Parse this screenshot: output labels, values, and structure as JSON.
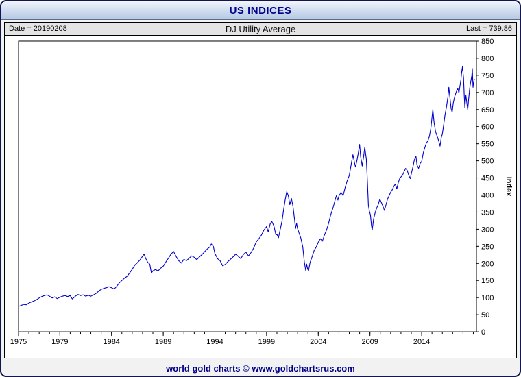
{
  "window": {
    "title": "US INDICES"
  },
  "chart_header": {
    "date": "Date = 20190208",
    "title": "DJ Utility Average",
    "last": "Last = 739.86"
  },
  "footer": {
    "text": "world gold charts © www.goldchartsrus.com"
  },
  "chart_data": {
    "type": "line",
    "title": "DJ Utility Average",
    "date": "20190208",
    "last": 739.86,
    "xlabel": "",
    "ylabel": "Index",
    "xlim": [
      1975,
      2019.3
    ],
    "ylim": [
      0,
      850
    ],
    "y_tick_step": 50,
    "x_ticks": [
      1975,
      1979,
      1984,
      1989,
      1994,
      1999,
      2004,
      2009,
      2014
    ],
    "grid": false,
    "legend": "none",
    "line_color": "#0000cc",
    "series": [
      {
        "name": "DJ Utility Average",
        "color": "#0000cc",
        "points": [
          [
            1975.0,
            74
          ],
          [
            1975.25,
            77
          ],
          [
            1975.5,
            80
          ],
          [
            1975.75,
            79
          ],
          [
            1976.0,
            84
          ],
          [
            1976.25,
            87
          ],
          [
            1976.5,
            90
          ],
          [
            1976.75,
            94
          ],
          [
            1977.0,
            99
          ],
          [
            1977.25,
            103
          ],
          [
            1977.5,
            106
          ],
          [
            1977.75,
            108
          ],
          [
            1978.0,
            104
          ],
          [
            1978.25,
            99
          ],
          [
            1978.5,
            102
          ],
          [
            1978.75,
            97
          ],
          [
            1979.0,
            101
          ],
          [
            1979.25,
            104
          ],
          [
            1979.5,
            106
          ],
          [
            1979.75,
            103
          ],
          [
            1980.0,
            106
          ],
          [
            1980.2,
            96
          ],
          [
            1980.5,
            104
          ],
          [
            1980.75,
            109
          ],
          [
            1981.0,
            106
          ],
          [
            1981.25,
            108
          ],
          [
            1981.5,
            104
          ],
          [
            1981.75,
            107
          ],
          [
            1982.0,
            104
          ],
          [
            1982.25,
            108
          ],
          [
            1982.5,
            112
          ],
          [
            1982.75,
            119
          ],
          [
            1983.0,
            124
          ],
          [
            1983.25,
            127
          ],
          [
            1983.5,
            129
          ],
          [
            1983.75,
            132
          ],
          [
            1984.0,
            129
          ],
          [
            1984.25,
            125
          ],
          [
            1984.5,
            133
          ],
          [
            1984.75,
            143
          ],
          [
            1985.0,
            150
          ],
          [
            1985.25,
            157
          ],
          [
            1985.5,
            162
          ],
          [
            1985.75,
            172
          ],
          [
            1986.0,
            183
          ],
          [
            1986.25,
            195
          ],
          [
            1986.5,
            202
          ],
          [
            1986.75,
            210
          ],
          [
            1987.0,
            221
          ],
          [
            1987.15,
            227
          ],
          [
            1987.3,
            215
          ],
          [
            1987.5,
            203
          ],
          [
            1987.7,
            198
          ],
          [
            1987.85,
            172
          ],
          [
            1988.0,
            178
          ],
          [
            1988.25,
            182
          ],
          [
            1988.5,
            178
          ],
          [
            1988.75,
            186
          ],
          [
            1989.0,
            192
          ],
          [
            1989.25,
            204
          ],
          [
            1989.5,
            215
          ],
          [
            1989.75,
            227
          ],
          [
            1990.0,
            235
          ],
          [
            1990.25,
            220
          ],
          [
            1990.5,
            208
          ],
          [
            1990.75,
            201
          ],
          [
            1991.0,
            212
          ],
          [
            1991.25,
            208
          ],
          [
            1991.5,
            215
          ],
          [
            1991.75,
            222
          ],
          [
            1992.0,
            218
          ],
          [
            1992.25,
            211
          ],
          [
            1992.5,
            219
          ],
          [
            1992.75,
            226
          ],
          [
            1993.0,
            234
          ],
          [
            1993.25,
            242
          ],
          [
            1993.5,
            248
          ],
          [
            1993.65,
            257
          ],
          [
            1993.85,
            250
          ],
          [
            1994.0,
            229
          ],
          [
            1994.25,
            214
          ],
          [
            1994.5,
            208
          ],
          [
            1994.75,
            193
          ],
          [
            1995.0,
            197
          ],
          [
            1995.25,
            205
          ],
          [
            1995.5,
            212
          ],
          [
            1995.75,
            219
          ],
          [
            1996.0,
            227
          ],
          [
            1996.25,
            221
          ],
          [
            1996.5,
            214
          ],
          [
            1996.75,
            226
          ],
          [
            1997.0,
            233
          ],
          [
            1997.25,
            222
          ],
          [
            1997.5,
            232
          ],
          [
            1997.75,
            245
          ],
          [
            1998.0,
            263
          ],
          [
            1998.25,
            272
          ],
          [
            1998.5,
            283
          ],
          [
            1998.75,
            298
          ],
          [
            1999.0,
            308
          ],
          [
            1999.15,
            292
          ],
          [
            1999.35,
            316
          ],
          [
            1999.5,
            323
          ],
          [
            1999.7,
            310
          ],
          [
            1999.9,
            283
          ],
          [
            2000.0,
            285
          ],
          [
            2000.15,
            275
          ],
          [
            2000.35,
            304
          ],
          [
            2000.5,
            325
          ],
          [
            2000.65,
            358
          ],
          [
            2000.8,
            386
          ],
          [
            2000.95,
            410
          ],
          [
            2001.1,
            398
          ],
          [
            2001.25,
            372
          ],
          [
            2001.4,
            390
          ],
          [
            2001.55,
            368
          ],
          [
            2001.7,
            330
          ],
          [
            2001.8,
            302
          ],
          [
            2001.9,
            318
          ],
          [
            2002.0,
            302
          ],
          [
            2002.15,
            288
          ],
          [
            2002.3,
            275
          ],
          [
            2002.5,
            248
          ],
          [
            2002.65,
            205
          ],
          [
            2002.78,
            180
          ],
          [
            2002.88,
            198
          ],
          [
            2002.95,
            185
          ],
          [
            2003.05,
            178
          ],
          [
            2003.2,
            202
          ],
          [
            2003.4,
            219
          ],
          [
            2003.6,
            238
          ],
          [
            2003.8,
            248
          ],
          [
            2004.0,
            262
          ],
          [
            2004.2,
            272
          ],
          [
            2004.4,
            265
          ],
          [
            2004.6,
            283
          ],
          [
            2004.8,
            298
          ],
          [
            2005.0,
            318
          ],
          [
            2005.2,
            342
          ],
          [
            2005.4,
            360
          ],
          [
            2005.6,
            382
          ],
          [
            2005.75,
            398
          ],
          [
            2005.9,
            385
          ],
          [
            2006.0,
            397
          ],
          [
            2006.2,
            408
          ],
          [
            2006.4,
            398
          ],
          [
            2006.6,
            422
          ],
          [
            2006.8,
            442
          ],
          [
            2007.0,
            457
          ],
          [
            2007.2,
            492
          ],
          [
            2007.35,
            518
          ],
          [
            2007.5,
            495
          ],
          [
            2007.6,
            482
          ],
          [
            2007.75,
            502
          ],
          [
            2007.9,
            528
          ],
          [
            2008.0,
            548
          ],
          [
            2008.1,
            512
          ],
          [
            2008.25,
            485
          ],
          [
            2008.4,
            515
          ],
          [
            2008.5,
            540
          ],
          [
            2008.65,
            505
          ],
          [
            2008.75,
            442
          ],
          [
            2008.85,
            370
          ],
          [
            2008.95,
            352
          ],
          [
            2009.05,
            342
          ],
          [
            2009.15,
            310
          ],
          [
            2009.22,
            298
          ],
          [
            2009.35,
            330
          ],
          [
            2009.5,
            348
          ],
          [
            2009.65,
            362
          ],
          [
            2009.8,
            372
          ],
          [
            2009.95,
            388
          ],
          [
            2010.1,
            378
          ],
          [
            2010.25,
            368
          ],
          [
            2010.4,
            355
          ],
          [
            2010.55,
            372
          ],
          [
            2010.7,
            388
          ],
          [
            2010.85,
            398
          ],
          [
            2011.0,
            408
          ],
          [
            2011.15,
            415
          ],
          [
            2011.3,
            425
          ],
          [
            2011.45,
            432
          ],
          [
            2011.6,
            418
          ],
          [
            2011.75,
            438
          ],
          [
            2011.9,
            450
          ],
          [
            2012.0,
            453
          ],
          [
            2012.15,
            458
          ],
          [
            2012.3,
            468
          ],
          [
            2012.45,
            478
          ],
          [
            2012.6,
            472
          ],
          [
            2012.75,
            458
          ],
          [
            2012.9,
            448
          ],
          [
            2013.0,
            462
          ],
          [
            2013.15,
            482
          ],
          [
            2013.3,
            503
          ],
          [
            2013.45,
            513
          ],
          [
            2013.55,
            488
          ],
          [
            2013.7,
            478
          ],
          [
            2013.85,
            492
          ],
          [
            2014.0,
            498
          ],
          [
            2014.15,
            522
          ],
          [
            2014.3,
            538
          ],
          [
            2014.45,
            552
          ],
          [
            2014.6,
            558
          ],
          [
            2014.75,
            572
          ],
          [
            2014.9,
            598
          ],
          [
            2015.0,
            628
          ],
          [
            2015.08,
            650
          ],
          [
            2015.2,
            612
          ],
          [
            2015.35,
            585
          ],
          [
            2015.5,
            572
          ],
          [
            2015.65,
            558
          ],
          [
            2015.78,
            543
          ],
          [
            2015.9,
            568
          ],
          [
            2016.0,
            578
          ],
          [
            2016.1,
            598
          ],
          [
            2016.25,
            632
          ],
          [
            2016.4,
            658
          ],
          [
            2016.55,
            688
          ],
          [
            2016.63,
            715
          ],
          [
            2016.75,
            682
          ],
          [
            2016.85,
            652
          ],
          [
            2016.95,
            642
          ],
          [
            2017.05,
            668
          ],
          [
            2017.2,
            688
          ],
          [
            2017.35,
            702
          ],
          [
            2017.5,
            712
          ],
          [
            2017.6,
            698
          ],
          [
            2017.7,
            718
          ],
          [
            2017.8,
            738
          ],
          [
            2017.88,
            762
          ],
          [
            2017.95,
            775
          ],
          [
            2018.05,
            742
          ],
          [
            2018.12,
            690
          ],
          [
            2018.18,
            655
          ],
          [
            2018.28,
            692
          ],
          [
            2018.38,
            668
          ],
          [
            2018.46,
            650
          ],
          [
            2018.55,
            682
          ],
          [
            2018.65,
            712
          ],
          [
            2018.75,
            732
          ],
          [
            2018.85,
            748
          ],
          [
            2018.9,
            770
          ],
          [
            2018.97,
            715
          ],
          [
            2019.02,
            728
          ],
          [
            2019.1,
            739.86
          ]
        ]
      }
    ]
  }
}
